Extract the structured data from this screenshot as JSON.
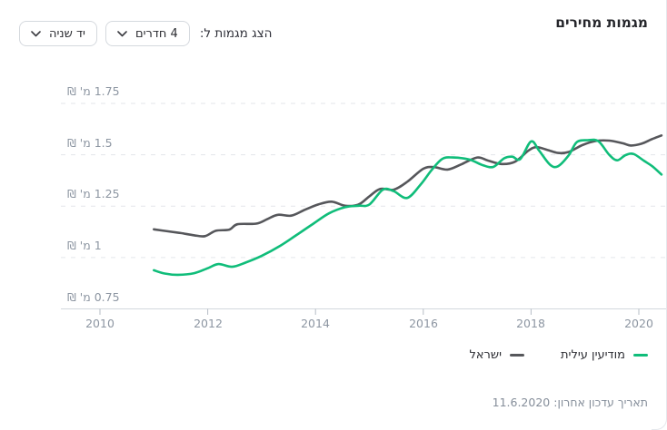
{
  "header": {
    "title": "מגמות מחירים",
    "controls_label": "הצג מגמות ל:",
    "dropdowns": [
      {
        "value": "4 חדרים"
      },
      {
        "value": "יד שניה"
      }
    ]
  },
  "legend": {
    "items": [
      {
        "label": "מודיעין עילית",
        "color": "#10bd7a"
      },
      {
        "label": "ישראל",
        "color": "#56575b"
      }
    ]
  },
  "footer": {
    "last_update_label": "תאריך עדכון אחרון:",
    "last_update_date": "11.6.2020"
  },
  "chart_data": {
    "type": "line",
    "title": "מגמות מחירים",
    "grid": "dashed-horizontal",
    "legend_position": "bottom-right",
    "x_axis": {
      "range": [
        2009.3,
        2020.55
      ],
      "ticks": [
        2010,
        2012,
        2014,
        2016,
        2018,
        2020
      ]
    },
    "y_axis": {
      "unit": "מ' ₪",
      "tick_values": [
        1.75,
        1.5,
        1.25,
        1,
        0.75
      ],
      "tick_labels": [
        "1.75 מ' ₪",
        "1.5 מ' ₪",
        "1.25 מ' ₪",
        "1 מ' ₪",
        "0.75 מ' ₪"
      ],
      "range": [
        0.75,
        1.75
      ]
    },
    "series": [
      {
        "name": "מודיעין עילית",
        "color": "#10bd7a",
        "points": [
          [
            2011.0,
            0.938
          ],
          [
            2011.2,
            0.922
          ],
          [
            2011.45,
            0.916
          ],
          [
            2011.75,
            0.924
          ],
          [
            2012.0,
            0.948
          ],
          [
            2012.2,
            0.968
          ],
          [
            2012.45,
            0.955
          ],
          [
            2012.7,
            0.975
          ],
          [
            2013.0,
            1.008
          ],
          [
            2013.35,
            1.058
          ],
          [
            2013.65,
            1.11
          ],
          [
            2013.95,
            1.163
          ],
          [
            2014.25,
            1.215
          ],
          [
            2014.55,
            1.245
          ],
          [
            2014.8,
            1.252
          ],
          [
            2015.0,
            1.258
          ],
          [
            2015.25,
            1.33
          ],
          [
            2015.45,
            1.323
          ],
          [
            2015.7,
            1.29
          ],
          [
            2015.95,
            1.355
          ],
          [
            2016.15,
            1.424
          ],
          [
            2016.35,
            1.48
          ],
          [
            2016.55,
            1.487
          ],
          [
            2016.85,
            1.477
          ],
          [
            2017.1,
            1.45
          ],
          [
            2017.3,
            1.441
          ],
          [
            2017.5,
            1.483
          ],
          [
            2017.65,
            1.491
          ],
          [
            2017.8,
            1.479
          ],
          [
            2018.0,
            1.565
          ],
          [
            2018.15,
            1.52
          ],
          [
            2018.35,
            1.452
          ],
          [
            2018.5,
            1.444
          ],
          [
            2018.7,
            1.498
          ],
          [
            2018.85,
            1.562
          ],
          [
            2019.05,
            1.571
          ],
          [
            2019.25,
            1.566
          ],
          [
            2019.45,
            1.5
          ],
          [
            2019.6,
            1.473
          ],
          [
            2019.75,
            1.498
          ],
          [
            2019.9,
            1.504
          ],
          [
            2020.1,
            1.47
          ],
          [
            2020.25,
            1.444
          ],
          [
            2020.42,
            1.404
          ]
        ]
      },
      {
        "name": "ישראל",
        "color": "#56575b",
        "points": [
          [
            2011.0,
            1.137
          ],
          [
            2011.25,
            1.128
          ],
          [
            2011.5,
            1.119
          ],
          [
            2011.75,
            1.108
          ],
          [
            2011.95,
            1.104
          ],
          [
            2012.15,
            1.13
          ],
          [
            2012.4,
            1.136
          ],
          [
            2012.55,
            1.162
          ],
          [
            2012.9,
            1.165
          ],
          [
            2013.1,
            1.186
          ],
          [
            2013.3,
            1.208
          ],
          [
            2013.55,
            1.204
          ],
          [
            2013.8,
            1.232
          ],
          [
            2014.05,
            1.258
          ],
          [
            2014.3,
            1.272
          ],
          [
            2014.55,
            1.252
          ],
          [
            2014.8,
            1.258
          ],
          [
            2015.0,
            1.298
          ],
          [
            2015.2,
            1.334
          ],
          [
            2015.45,
            1.33
          ],
          [
            2015.7,
            1.368
          ],
          [
            2016.0,
            1.432
          ],
          [
            2016.2,
            1.44
          ],
          [
            2016.45,
            1.428
          ],
          [
            2016.7,
            1.453
          ],
          [
            2017.0,
            1.487
          ],
          [
            2017.2,
            1.472
          ],
          [
            2017.45,
            1.455
          ],
          [
            2017.7,
            1.466
          ],
          [
            2017.95,
            1.52
          ],
          [
            2018.1,
            1.537
          ],
          [
            2018.3,
            1.524
          ],
          [
            2018.5,
            1.509
          ],
          [
            2018.7,
            1.514
          ],
          [
            2018.95,
            1.547
          ],
          [
            2019.2,
            1.567
          ],
          [
            2019.45,
            1.569
          ],
          [
            2019.7,
            1.556
          ],
          [
            2019.85,
            1.545
          ],
          [
            2020.05,
            1.554
          ],
          [
            2020.25,
            1.577
          ],
          [
            2020.42,
            1.594
          ]
        ]
      }
    ]
  }
}
